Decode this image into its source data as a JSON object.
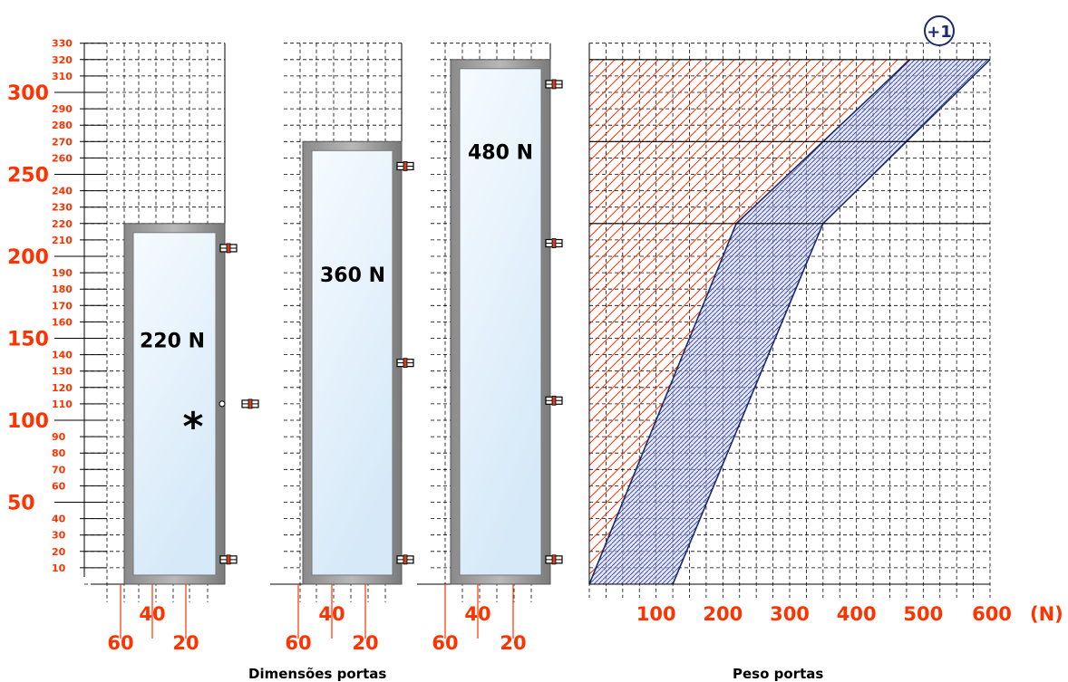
{
  "colors": {
    "accent": "#ff3300",
    "chart_line": "#1a2a6c",
    "grid": "#000000",
    "door_fill_light": "#f3f9ff",
    "door_fill_blue": "#dcecfa"
  },
  "left_scale": {
    "small_ticks": [
      "10",
      "20",
      "30",
      "40",
      "60",
      "70",
      "80",
      "90",
      "110",
      "120",
      "130",
      "140",
      "160",
      "170",
      "180",
      "190",
      "210",
      "220",
      "230",
      "240",
      "260",
      "270",
      "280",
      "290",
      "310",
      "320",
      "330"
    ],
    "large_ticks": [
      "50",
      "100",
      "150",
      "200",
      "250",
      "300"
    ]
  },
  "doors": [
    {
      "height_cm": 220,
      "label": "220 N",
      "width_ticks": [
        "60",
        "40",
        "20"
      ],
      "hinge_heights_cm": [
        205,
        15
      ],
      "extra_hinge_cm": 110,
      "marker": "*"
    },
    {
      "height_cm": 270,
      "label": "360 N",
      "width_ticks": [
        "60",
        "40",
        "20"
      ],
      "hinge_heights_cm": [
        255,
        135,
        15
      ]
    },
    {
      "height_cm": 320,
      "label": "480 N",
      "width_ticks": [
        "60",
        "40",
        "20"
      ],
      "hinge_heights_cm": [
        305,
        208,
        112,
        15
      ]
    }
  ],
  "badge": "+1",
  "captions": {
    "left": "Dimensões portas",
    "right": "Peso portas"
  },
  "chart_data": {
    "type": "area",
    "x_unit_label": "(N)",
    "x_tick_labels": [
      "100",
      "200",
      "300",
      "400",
      "500",
      "600"
    ],
    "xlim": [
      0,
      600
    ],
    "ylim": [
      0,
      330
    ],
    "blue_band": {
      "left_boundary": [
        [
          0,
          0
        ],
        [
          220,
          220
        ],
        [
          480,
          320
        ]
      ],
      "right_boundary": [
        [
          125,
          0
        ],
        [
          350,
          220
        ],
        [
          600,
          320
        ]
      ]
    },
    "red_hatched_region": "left of blue band, up to 320"
  }
}
